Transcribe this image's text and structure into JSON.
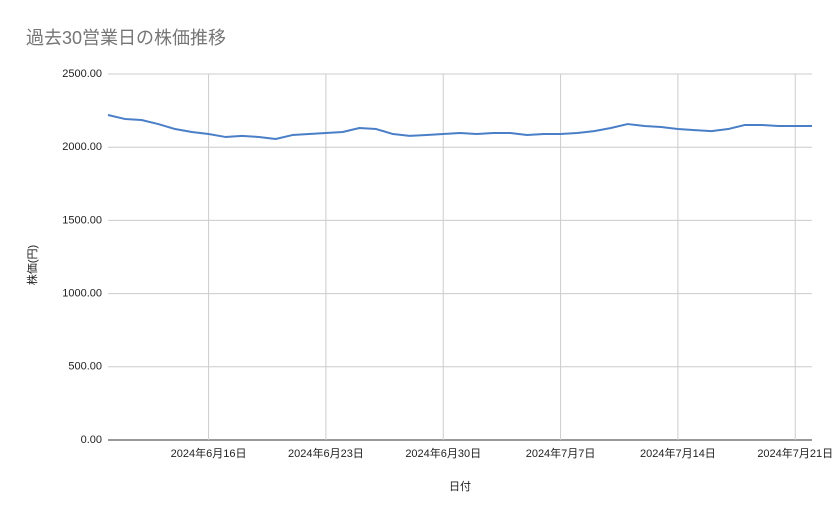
{
  "chart_data": {
    "type": "line",
    "title": "過去30営業日の株価推移",
    "x_label": "日付",
    "y_label": "株価(円)",
    "x": [
      "2024-06-10",
      "2024-06-11",
      "2024-06-12",
      "2024-06-13",
      "2024-06-14",
      "2024-06-15",
      "2024-06-16",
      "2024-06-17",
      "2024-06-18",
      "2024-06-19",
      "2024-06-20",
      "2024-06-21",
      "2024-06-22",
      "2024-06-23",
      "2024-06-24",
      "2024-06-25",
      "2024-06-26",
      "2024-06-27",
      "2024-06-28",
      "2024-06-29",
      "2024-06-30",
      "2024-07-01",
      "2024-07-02",
      "2024-07-03",
      "2024-07-04",
      "2024-07-05",
      "2024-07-06",
      "2024-07-07",
      "2024-07-08",
      "2024-07-09",
      "2024-07-10",
      "2024-07-11",
      "2024-07-12",
      "2024-07-13",
      "2024-07-14",
      "2024-07-15",
      "2024-07-16",
      "2024-07-17",
      "2024-07-18",
      "2024-07-19",
      "2024-07-20",
      "2024-07-21",
      "2024-07-22"
    ],
    "series": [
      {
        "name": "株価",
        "color": "#4a7fc8",
        "values": [
          2220,
          2193,
          2186,
          2158,
          2124,
          2104,
          2090,
          2070,
          2077,
          2070,
          2056,
          2083,
          2090,
          2097,
          2104,
          2131,
          2124,
          2090,
          2077,
          2083,
          2090,
          2097,
          2090,
          2097,
          2097,
          2083,
          2090,
          2090,
          2097,
          2110,
          2131,
          2158,
          2145,
          2138,
          2124,
          2117,
          2110,
          2124,
          2152,
          2152,
          2145,
          2145,
          2145
        ]
      }
    ],
    "xlim": [
      "2024-06-10",
      "2024-07-22"
    ],
    "xticks": [
      {
        "value": "2024-06-16",
        "label": "2024年6月16日"
      },
      {
        "value": "2024-06-23",
        "label": "2024年6月23日"
      },
      {
        "value": "2024-06-30",
        "label": "2024年6月30日"
      },
      {
        "value": "2024-07-07",
        "label": "2024年7月7日"
      },
      {
        "value": "2024-07-14",
        "label": "2024年7月14日"
      },
      {
        "value": "2024-07-21",
        "label": "2024年7月21日"
      }
    ],
    "ylim": [
      0,
      2500
    ],
    "yticks": [
      {
        "value": 0,
        "label": "0.00"
      },
      {
        "value": 500,
        "label": "500.00"
      },
      {
        "value": 1000,
        "label": "1000.00"
      },
      {
        "value": 1500,
        "label": "1500.00"
      },
      {
        "value": 2000,
        "label": "2000.00"
      },
      {
        "value": 2500,
        "label": "2500.00"
      }
    ],
    "grid": true
  }
}
